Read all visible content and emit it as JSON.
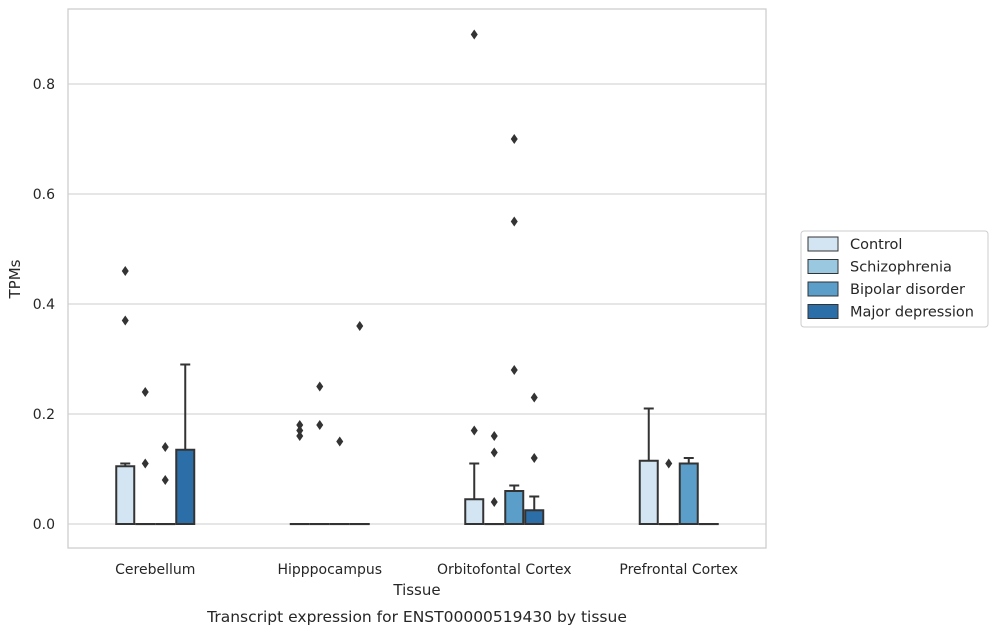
{
  "chart_data": {
    "type": "box",
    "xlabel": "Tissue",
    "ylabel": "TPMs",
    "caption": "Transcript expression for ENST00000519430 by tissue",
    "categories": [
      "Cerebellum",
      "Hipppocampus",
      "Orbitofontal Cortex",
      "Prefrontal Cortex"
    ],
    "ylim": [
      -0.043,
      0.938
    ],
    "yticks": [
      0.0,
      0.2,
      0.4,
      0.6,
      0.8
    ],
    "ytick_labels": [
      "0.0",
      "0.2",
      "0.4",
      "0.6",
      "0.8"
    ],
    "grid": true,
    "legend_position": "right",
    "series": [
      {
        "name": "Control",
        "color": "#d3e4f3",
        "boxes": [
          {
            "q1": 0.0,
            "median": 0.0,
            "q3": 0.105,
            "whisker_high": 0.11,
            "outliers": [
              0.46,
              0.37
            ]
          },
          {
            "q1": 0.0,
            "median": 0.0,
            "q3": 0.0,
            "whisker_high": 0.0,
            "outliers": [
              0.18,
              0.17,
              0.16
            ]
          },
          {
            "q1": 0.0,
            "median": 0.0,
            "q3": 0.045,
            "whisker_high": 0.11,
            "outliers": [
              0.89,
              0.17
            ]
          },
          {
            "q1": 0.0,
            "median": 0.0,
            "q3": 0.115,
            "whisker_high": 0.21,
            "outliers": []
          }
        ]
      },
      {
        "name": "Schizophrenia",
        "color": "#9ac8e0",
        "boxes": [
          {
            "q1": 0.0,
            "median": 0.0,
            "q3": 0.0,
            "whisker_high": 0.0,
            "outliers": [
              0.24,
              0.11
            ]
          },
          {
            "q1": 0.0,
            "median": 0.0,
            "q3": 0.0,
            "whisker_high": 0.0,
            "outliers": [
              0.25,
              0.18
            ]
          },
          {
            "q1": 0.0,
            "median": 0.0,
            "q3": 0.0,
            "whisker_high": 0.0,
            "outliers": [
              0.16,
              0.13,
              0.04
            ]
          },
          {
            "q1": 0.0,
            "median": 0.0,
            "q3": 0.0,
            "whisker_high": 0.0,
            "outliers": [
              0.11
            ]
          }
        ]
      },
      {
        "name": "Bipolar disorder",
        "color": "#5a9ec9",
        "boxes": [
          {
            "q1": 0.0,
            "median": 0.0,
            "q3": 0.0,
            "whisker_high": 0.0,
            "outliers": [
              0.14,
              0.08
            ]
          },
          {
            "q1": 0.0,
            "median": 0.0,
            "q3": 0.0,
            "whisker_high": 0.0,
            "outliers": [
              0.15
            ]
          },
          {
            "q1": 0.0,
            "median": 0.0,
            "q3": 0.06,
            "whisker_high": 0.07,
            "outliers": [
              0.7,
              0.55,
              0.28
            ]
          },
          {
            "q1": 0.0,
            "median": 0.0,
            "q3": 0.11,
            "whisker_high": 0.12,
            "outliers": []
          }
        ]
      },
      {
        "name": "Major depression",
        "color": "#2c6ea8",
        "boxes": [
          {
            "q1": 0.0,
            "median": 0.0,
            "q3": 0.135,
            "whisker_high": 0.29,
            "outliers": []
          },
          {
            "q1": 0.0,
            "median": 0.0,
            "q3": 0.0,
            "whisker_high": 0.0,
            "outliers": [
              0.36
            ]
          },
          {
            "q1": 0.0,
            "median": 0.0,
            "q3": 0.025,
            "whisker_high": 0.05,
            "outliers": [
              0.23,
              0.12
            ]
          },
          {
            "q1": 0.0,
            "median": 0.0,
            "q3": 0.0,
            "whisker_high": 0.0,
            "outliers": []
          }
        ]
      }
    ]
  },
  "style": {
    "grid_color": "#cccccc",
    "frame_color": "#cccccc",
    "box_edge_color": "#333333",
    "outlier_color": "#333333",
    "legend_edge_color": "#cccccc"
  }
}
